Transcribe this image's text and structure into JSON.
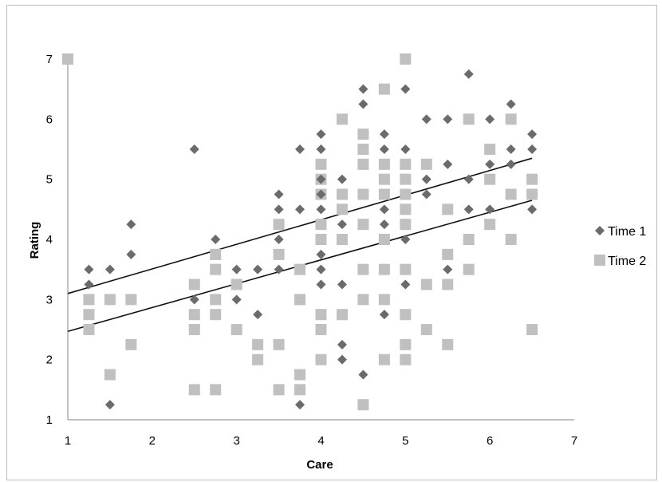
{
  "chart_data": {
    "type": "scatter",
    "title": "",
    "xlabel": "Care",
    "ylabel": "Rating",
    "xlim": [
      1,
      7
    ],
    "ylim": [
      1,
      7
    ],
    "xticks": [
      "1",
      "2",
      "3",
      "4",
      "5",
      "6",
      "7"
    ],
    "yticks": [
      "1",
      "2",
      "3",
      "4",
      "5",
      "6",
      "7"
    ],
    "grid": false,
    "legend_position": "right",
    "series": [
      {
        "name": "Time 1",
        "marker": "diamond",
        "color": "#6b6b6b",
        "trendline": [
          [
            1,
            3.1
          ],
          [
            6.5,
            5.35
          ]
        ],
        "points": [
          [
            1.25,
            3.5
          ],
          [
            1.25,
            3.25
          ],
          [
            1.5,
            3.5
          ],
          [
            1.5,
            1.25
          ],
          [
            1.75,
            4.25
          ],
          [
            1.75,
            3.75
          ],
          [
            2.5,
            5.5
          ],
          [
            2.5,
            3.0
          ],
          [
            2.75,
            4.0
          ],
          [
            3.0,
            3.5
          ],
          [
            3.0,
            3.0
          ],
          [
            3.25,
            3.5
          ],
          [
            3.25,
            2.75
          ],
          [
            3.5,
            4.75
          ],
          [
            3.5,
            4.5
          ],
          [
            3.5,
            4.0
          ],
          [
            3.5,
            3.5
          ],
          [
            3.75,
            5.5
          ],
          [
            3.75,
            4.5
          ],
          [
            3.75,
            1.25
          ],
          [
            4.0,
            5.75
          ],
          [
            4.0,
            5.5
          ],
          [
            4.0,
            5.0
          ],
          [
            4.0,
            4.75
          ],
          [
            4.0,
            4.5
          ],
          [
            4.0,
            3.75
          ],
          [
            4.0,
            3.5
          ],
          [
            4.0,
            3.25
          ],
          [
            4.25,
            5.0
          ],
          [
            4.25,
            4.25
          ],
          [
            4.25,
            3.25
          ],
          [
            4.25,
            2.25
          ],
          [
            4.25,
            2.0
          ],
          [
            4.5,
            6.5
          ],
          [
            4.5,
            6.25
          ],
          [
            4.5,
            1.75
          ],
          [
            4.75,
            5.75
          ],
          [
            4.75,
            5.5
          ],
          [
            4.75,
            4.5
          ],
          [
            4.75,
            4.25
          ],
          [
            4.75,
            2.75
          ],
          [
            5.0,
            6.5
          ],
          [
            5.0,
            5.5
          ],
          [
            5.0,
            4.0
          ],
          [
            5.0,
            3.25
          ],
          [
            5.25,
            6.0
          ],
          [
            5.25,
            5.0
          ],
          [
            5.25,
            4.75
          ],
          [
            5.5,
            6.0
          ],
          [
            5.5,
            5.25
          ],
          [
            5.5,
            3.5
          ],
          [
            5.75,
            6.75
          ],
          [
            5.75,
            5.0
          ],
          [
            5.75,
            4.5
          ],
          [
            6.0,
            6.0
          ],
          [
            6.0,
            5.25
          ],
          [
            6.0,
            4.5
          ],
          [
            6.25,
            6.25
          ],
          [
            6.25,
            5.5
          ],
          [
            6.25,
            5.25
          ],
          [
            6.5,
            5.75
          ],
          [
            6.5,
            5.5
          ],
          [
            6.5,
            4.5
          ]
        ]
      },
      {
        "name": "Time 2",
        "marker": "square",
        "color": "#c0c0c0",
        "trendline": [
          [
            1,
            2.47
          ],
          [
            6.5,
            4.65
          ]
        ],
        "points": [
          [
            1.0,
            7.0
          ],
          [
            1.25,
            3.0
          ],
          [
            1.25,
            2.75
          ],
          [
            1.25,
            2.5
          ],
          [
            1.5,
            3.0
          ],
          [
            1.5,
            1.75
          ],
          [
            1.75,
            3.0
          ],
          [
            1.75,
            2.25
          ],
          [
            2.5,
            3.25
          ],
          [
            2.5,
            2.75
          ],
          [
            2.5,
            2.5
          ],
          [
            2.5,
            1.5
          ],
          [
            2.75,
            3.75
          ],
          [
            2.75,
            3.5
          ],
          [
            2.75,
            3.0
          ],
          [
            2.75,
            2.75
          ],
          [
            2.75,
            1.5
          ],
          [
            3.0,
            3.25
          ],
          [
            3.0,
            2.5
          ],
          [
            3.25,
            2.25
          ],
          [
            3.25,
            2.0
          ],
          [
            3.5,
            4.25
          ],
          [
            3.5,
            3.75
          ],
          [
            3.5,
            2.25
          ],
          [
            3.5,
            1.5
          ],
          [
            3.75,
            3.5
          ],
          [
            3.75,
            3.0
          ],
          [
            3.75,
            1.75
          ],
          [
            3.75,
            1.5
          ],
          [
            4.0,
            5.25
          ],
          [
            4.0,
            5.0
          ],
          [
            4.0,
            4.75
          ],
          [
            4.0,
            4.25
          ],
          [
            4.0,
            4.0
          ],
          [
            4.0,
            2.75
          ],
          [
            4.0,
            2.5
          ],
          [
            4.0,
            2.0
          ],
          [
            4.25,
            6.0
          ],
          [
            4.25,
            4.75
          ],
          [
            4.25,
            4.5
          ],
          [
            4.25,
            4.0
          ],
          [
            4.25,
            2.75
          ],
          [
            4.5,
            5.75
          ],
          [
            4.5,
            5.5
          ],
          [
            4.5,
            5.25
          ],
          [
            4.5,
            4.75
          ],
          [
            4.5,
            4.25
          ],
          [
            4.5,
            3.5
          ],
          [
            4.5,
            3.0
          ],
          [
            4.5,
            1.25
          ],
          [
            4.75,
            6.5
          ],
          [
            4.75,
            5.25
          ],
          [
            4.75,
            5.0
          ],
          [
            4.75,
            4.75
          ],
          [
            4.75,
            4.0
          ],
          [
            4.75,
            3.5
          ],
          [
            4.75,
            3.0
          ],
          [
            4.75,
            2.0
          ],
          [
            5.0,
            7.0
          ],
          [
            5.0,
            5.25
          ],
          [
            5.0,
            5.0
          ],
          [
            5.0,
            4.75
          ],
          [
            5.0,
            4.5
          ],
          [
            5.0,
            4.25
          ],
          [
            5.0,
            3.5
          ],
          [
            5.0,
            2.75
          ],
          [
            5.0,
            2.25
          ],
          [
            5.0,
            2.0
          ],
          [
            5.25,
            5.25
          ],
          [
            5.25,
            3.25
          ],
          [
            5.25,
            2.5
          ],
          [
            5.5,
            4.5
          ],
          [
            5.5,
            3.75
          ],
          [
            5.5,
            3.25
          ],
          [
            5.5,
            2.25
          ],
          [
            5.75,
            6.0
          ],
          [
            5.75,
            4.0
          ],
          [
            5.75,
            3.5
          ],
          [
            6.0,
            5.5
          ],
          [
            6.0,
            5.0
          ],
          [
            6.0,
            4.25
          ],
          [
            6.25,
            6.0
          ],
          [
            6.25,
            4.75
          ],
          [
            6.25,
            4.0
          ],
          [
            6.5,
            5.0
          ],
          [
            6.5,
            4.75
          ],
          [
            6.5,
            2.5
          ]
        ]
      }
    ]
  }
}
